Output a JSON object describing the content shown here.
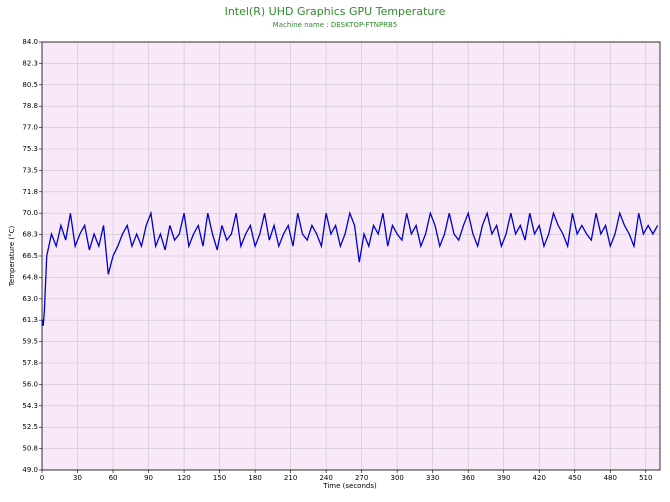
{
  "chart_data": {
    "type": "line",
    "title": "Intel(R) UHD Graphics GPU Temperature",
    "subtitle": "Machine name : DESKTOP-FTNPRB5",
    "x_label": "Time (seconds)",
    "y_label": "Temperature (°C)",
    "xlim": [
      0,
      522
    ],
    "ylim": [
      49,
      84
    ],
    "xticks": [
      0,
      30,
      60,
      90,
      120,
      150,
      180,
      210,
      240,
      270,
      300,
      330,
      360,
      390,
      420,
      450,
      480,
      510
    ],
    "yticks": [
      {
        "value": 49,
        "label": "49.0"
      },
      {
        "value": 50.75,
        "label": "50.8"
      },
      {
        "value": 52.5,
        "label": "52.5"
      },
      {
        "value": 54.25,
        "label": "54.3"
      },
      {
        "value": 56,
        "label": "56.0"
      },
      {
        "value": 57.75,
        "label": "57.8"
      },
      {
        "value": 59.5,
        "label": "59.5"
      },
      {
        "value": 61.25,
        "label": "61.3"
      },
      {
        "value": 63,
        "label": "63.0"
      },
      {
        "value": 64.75,
        "label": "64.8"
      },
      {
        "value": 66.5,
        "label": "66.5"
      },
      {
        "value": 68.25,
        "label": "68.3"
      },
      {
        "value": 70,
        "label": "70.0"
      },
      {
        "value": 71.75,
        "label": "71.8"
      },
      {
        "value": 73.5,
        "label": "73.5"
      },
      {
        "value": 75.25,
        "label": "75.3"
      },
      {
        "value": 77,
        "label": "77.0"
      },
      {
        "value": 78.75,
        "label": "78.8"
      },
      {
        "value": 80.5,
        "label": "80.5"
      },
      {
        "value": 82.25,
        "label": "82.3"
      },
      {
        "value": 84,
        "label": "84.0"
      }
    ],
    "grid": true,
    "background": "#f8e8f8",
    "x": [
      0,
      1,
      2,
      4,
      8,
      12,
      16,
      20,
      24,
      28,
      32,
      36,
      40,
      44,
      48,
      52,
      56,
      60,
      64,
      68,
      72,
      76,
      80,
      84,
      88,
      92,
      96,
      100,
      104,
      108,
      112,
      116,
      120,
      124,
      128,
      132,
      136,
      140,
      144,
      148,
      152,
      156,
      160,
      164,
      168,
      172,
      176,
      180,
      184,
      188,
      192,
      196,
      200,
      204,
      208,
      212,
      216,
      220,
      224,
      228,
      232,
      236,
      240,
      244,
      248,
      252,
      256,
      260,
      264,
      268,
      272,
      276,
      280,
      284,
      288,
      292,
      296,
      300,
      304,
      308,
      312,
      316,
      320,
      324,
      328,
      332,
      336,
      340,
      344,
      348,
      352,
      356,
      360,
      364,
      368,
      372,
      376,
      380,
      384,
      388,
      392,
      396,
      400,
      404,
      408,
      412,
      416,
      420,
      424,
      428,
      432,
      436,
      440,
      444,
      448,
      452,
      456,
      460,
      464,
      468,
      472,
      476,
      480,
      484,
      488,
      492,
      496,
      500,
      504,
      508,
      512,
      516,
      520
    ],
    "series": [
      {
        "name": "GPU Temperature",
        "color": "#0000cc",
        "values": [
          61.3,
          60.8,
          62,
          66.5,
          68.3,
          67.3,
          69,
          67.8,
          70,
          67.3,
          68.3,
          69,
          67,
          68.3,
          67.3,
          69,
          65,
          66.5,
          67.3,
          68.3,
          69,
          67.3,
          68.3,
          67.3,
          69,
          70,
          67.3,
          68.3,
          67,
          69,
          67.8,
          68.3,
          70,
          67.3,
          68.3,
          69,
          67.3,
          70,
          68.3,
          67,
          69,
          67.8,
          68.3,
          70,
          67.3,
          68.3,
          69,
          67.3,
          68.3,
          70,
          67.8,
          69,
          67.3,
          68.3,
          69,
          67.3,
          70,
          68.3,
          67.8,
          69,
          68.3,
          67.3,
          70,
          68.3,
          69,
          67.3,
          68.3,
          70,
          69,
          66,
          68.3,
          67.3,
          69,
          68.3,
          70,
          67.3,
          69,
          68.3,
          67.8,
          70,
          68.3,
          69,
          67.3,
          68.3,
          70,
          69,
          67.3,
          68.3,
          70,
          68.3,
          67.8,
          69,
          70,
          68.3,
          67.3,
          69,
          70,
          68.3,
          69,
          67.3,
          68.3,
          70,
          68.3,
          69,
          67.8,
          70,
          68.3,
          69,
          67.3,
          68.3,
          70,
          69,
          68.3,
          67.3,
          70,
          68.3,
          69,
          68.3,
          67.8,
          70,
          68.3,
          69,
          67.3,
          68.3,
          70,
          69,
          68.3,
          67.3,
          70,
          68.3,
          69,
          68.3,
          69
        ]
      }
    ]
  }
}
